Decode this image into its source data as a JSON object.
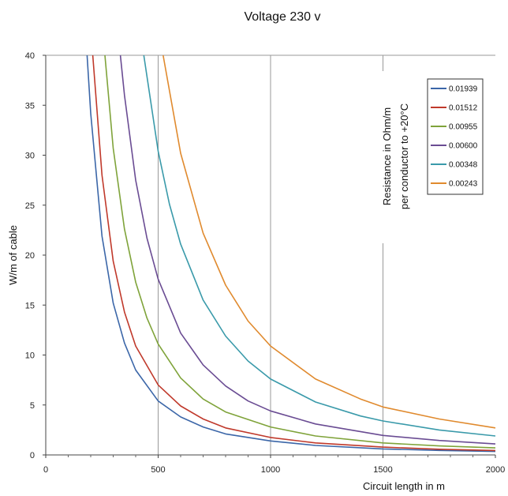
{
  "chart_data": {
    "type": "line",
    "title": "Voltage 230 v",
    "xlabel": "Circuit length in m",
    "ylabel": "W/m of cable",
    "xlim": [
      0,
      2000
    ],
    "ylim": [
      0,
      40
    ],
    "x_ticks": [
      0,
      500,
      1000,
      1500,
      2000
    ],
    "y_ticks": [
      0,
      5,
      10,
      15,
      20,
      25,
      30,
      35,
      40
    ],
    "grid": "vertical at 500, 1000, 1500; horizontal at 40",
    "legend_position": "top-right",
    "legend_title": [
      "Resistance in Ohm/m",
      "per conductor to +20°C"
    ],
    "voltage_v": 230,
    "series": [
      {
        "name": "0.01939",
        "resistance": 0.01939,
        "color": "#3b66a8",
        "points": [
          [
            184,
            40
          ],
          [
            200,
            34.2
          ],
          [
            250,
            21.9
          ],
          [
            300,
            15.2
          ],
          [
            350,
            11.2
          ],
          [
            400,
            8.5
          ],
          [
            500,
            5.4
          ],
          [
            600,
            3.8
          ],
          [
            700,
            2.8
          ],
          [
            800,
            2.1
          ],
          [
            1000,
            1.4
          ],
          [
            1200,
            0.95
          ],
          [
            1500,
            0.6
          ],
          [
            1750,
            0.45
          ],
          [
            2000,
            0.35
          ]
        ]
      },
      {
        "name": "0.01512",
        "resistance": 0.01512,
        "color": "#c0392b",
        "points": [
          [
            209,
            40
          ],
          [
            250,
            28.0
          ],
          [
            300,
            19.4
          ],
          [
            350,
            14.3
          ],
          [
            400,
            10.9
          ],
          [
            500,
            7.0
          ],
          [
            600,
            4.9
          ],
          [
            700,
            3.6
          ],
          [
            800,
            2.7
          ],
          [
            1000,
            1.75
          ],
          [
            1200,
            1.2
          ],
          [
            1500,
            0.78
          ],
          [
            1750,
            0.57
          ],
          [
            2000,
            0.44
          ]
        ]
      },
      {
        "name": "0.00955",
        "resistance": 0.00955,
        "color": "#7fa33a",
        "points": [
          [
            263,
            40
          ],
          [
            300,
            30.7
          ],
          [
            350,
            22.6
          ],
          [
            400,
            17.3
          ],
          [
            450,
            13.7
          ],
          [
            500,
            11.1
          ],
          [
            600,
            7.7
          ],
          [
            700,
            5.6
          ],
          [
            800,
            4.3
          ],
          [
            1000,
            2.8
          ],
          [
            1200,
            1.9
          ],
          [
            1500,
            1.2
          ],
          [
            1750,
            0.9
          ],
          [
            2000,
            0.7
          ]
        ]
      },
      {
        "name": "0.00600",
        "resistance": 0.006,
        "color": "#6a4c93",
        "points": [
          [
            332,
            40
          ],
          [
            350,
            36.0
          ],
          [
            400,
            27.5
          ],
          [
            450,
            21.7
          ],
          [
            500,
            17.6
          ],
          [
            600,
            12.2
          ],
          [
            700,
            9.0
          ],
          [
            800,
            6.9
          ],
          [
            900,
            5.4
          ],
          [
            1000,
            4.4
          ],
          [
            1200,
            3.1
          ],
          [
            1500,
            1.95
          ],
          [
            1750,
            1.45
          ],
          [
            2000,
            1.1
          ]
        ]
      },
      {
        "name": "0.00348",
        "resistance": 0.00348,
        "color": "#3a9aaa",
        "points": [
          [
            436,
            40
          ],
          [
            500,
            30.4
          ],
          [
            550,
            25.1
          ],
          [
            600,
            21.1
          ],
          [
            700,
            15.5
          ],
          [
            800,
            11.9
          ],
          [
            900,
            9.4
          ],
          [
            1000,
            7.6
          ],
          [
            1200,
            5.3
          ],
          [
            1400,
            3.9
          ],
          [
            1500,
            3.4
          ],
          [
            1750,
            2.5
          ],
          [
            2000,
            1.9
          ]
        ]
      },
      {
        "name": "0.00243",
        "resistance": 0.00243,
        "color": "#e08a2e",
        "points": [
          [
            522,
            40
          ],
          [
            600,
            30.2
          ],
          [
            700,
            22.2
          ],
          [
            800,
            17.0
          ],
          [
            900,
            13.4
          ],
          [
            1000,
            10.9
          ],
          [
            1200,
            7.6
          ],
          [
            1400,
            5.6
          ],
          [
            1500,
            4.8
          ],
          [
            1750,
            3.6
          ],
          [
            2000,
            2.7
          ]
        ]
      }
    ]
  }
}
